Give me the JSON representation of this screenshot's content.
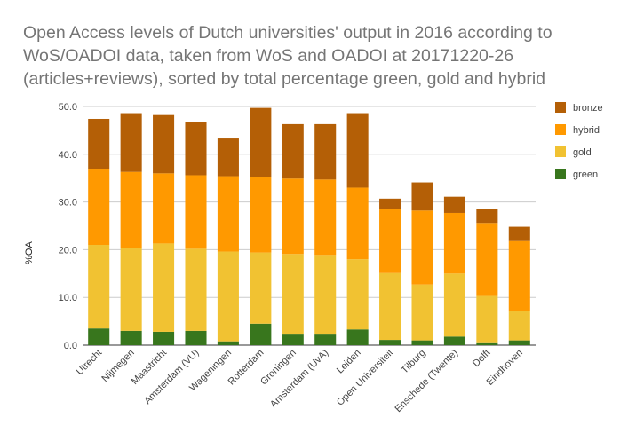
{
  "chart_data": {
    "type": "bar",
    "stacked": true,
    "title": "Open Access levels of Dutch universities' output in 2016 according to WoS/OADOI data, taken from WoS and OADOI at 20171220-26 (articles+reviews), sorted by total percentage green, gold and hybrid",
    "ylabel": "%OA",
    "xlabel": "",
    "ylim": [
      0,
      50
    ],
    "yticks": [
      "0.0",
      "10.0",
      "20.0",
      "30.0",
      "40.0",
      "50.0"
    ],
    "grid": true,
    "legend_position": "right",
    "categories": [
      "Utrecht",
      "Nijmegen",
      "Maastricht",
      "Amsterdam (VU)",
      "Wageningen",
      "Rotterdam",
      "Groningen",
      "Amsterdam (UvA)",
      "Leiden",
      "Open Universiteit",
      "Tilburg",
      "Enschede (Twente)",
      "Delft",
      "Eindhoven"
    ],
    "series": [
      {
        "name": "green",
        "color": "#38761d",
        "values": [
          3.5,
          3.0,
          2.8,
          3.0,
          0.8,
          4.5,
          2.4,
          2.4,
          3.3,
          1.1,
          1.0,
          1.8,
          0.6,
          1.0
        ]
      },
      {
        "name": "gold",
        "color": "#f1c232",
        "values": [
          17.5,
          17.3,
          18.5,
          17.2,
          18.8,
          14.9,
          16.7,
          16.5,
          14.7,
          14.0,
          11.7,
          13.2,
          9.7,
          6.1
        ]
      },
      {
        "name": "hybrid",
        "color": "#ff9900",
        "values": [
          15.8,
          16.0,
          14.7,
          15.4,
          15.8,
          15.8,
          15.8,
          15.8,
          15.0,
          13.4,
          15.5,
          12.7,
          15.3,
          14.7
        ]
      },
      {
        "name": "bronze",
        "color": "#b45f06",
        "values": [
          10.6,
          12.3,
          12.2,
          11.2,
          7.9,
          14.5,
          11.4,
          11.6,
          15.6,
          2.2,
          5.9,
          3.4,
          2.9,
          3.0
        ]
      }
    ]
  }
}
